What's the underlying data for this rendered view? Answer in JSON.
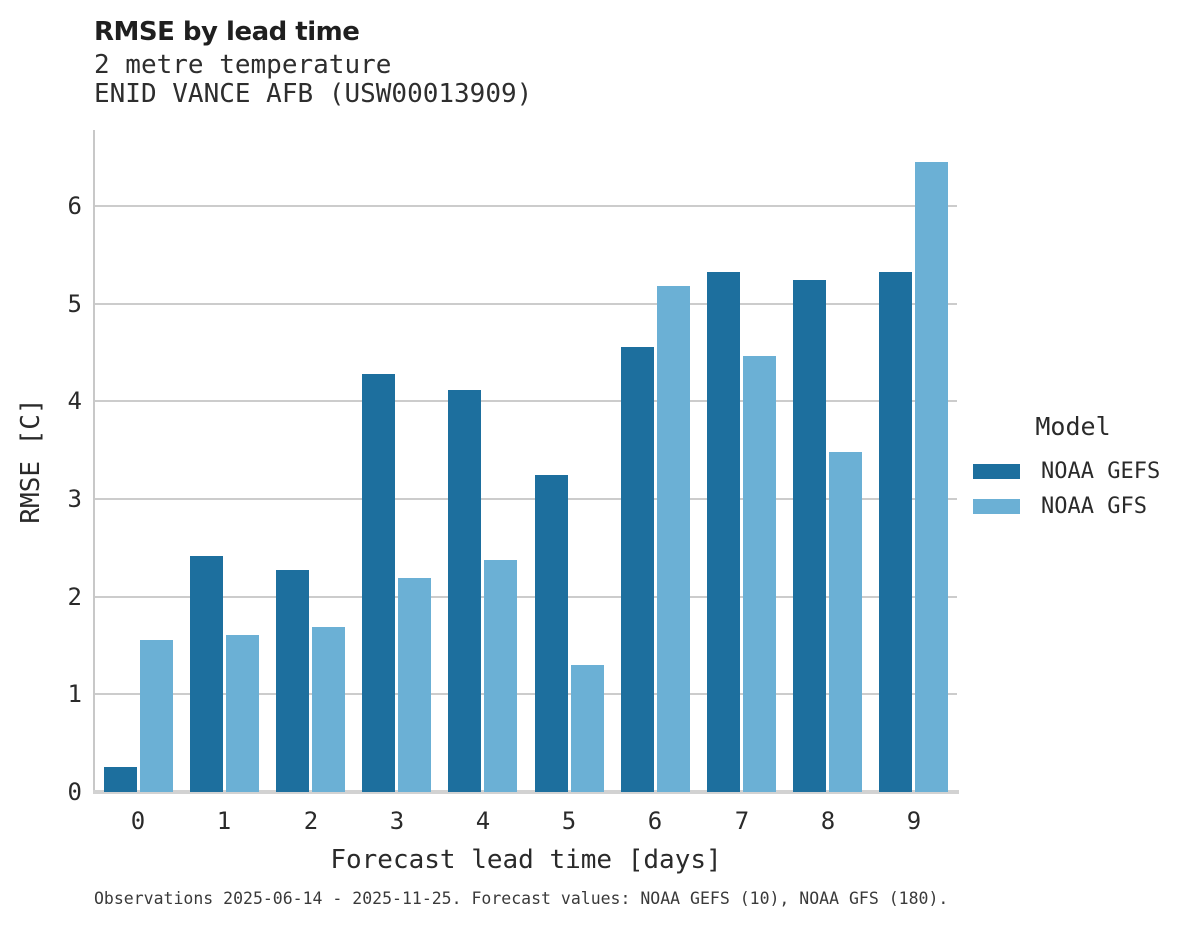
{
  "header": {
    "title": "RMSE by lead time",
    "subtitle": "2 metre temperature",
    "station": "ENID VANCE AFB (USW00013909)"
  },
  "legend": {
    "title": "Model",
    "items": [
      {
        "label": "NOAA GEFS",
        "color": "#1d6f9e"
      },
      {
        "label": "NOAA GFS",
        "color": "#6bb0d5"
      }
    ]
  },
  "footer": {
    "caption": "Observations 2025-06-14 - 2025-11-25. Forecast values: NOAA GEFS (10), NOAA GFS (180)."
  },
  "colors": {
    "gefs": "#1d6f9e",
    "gfs": "#6bb0d5",
    "gridline": "#cccccc",
    "spine": "#c8c8c8"
  },
  "chart_data": {
    "type": "bar",
    "title": "RMSE by lead time",
    "subtitle": "2 metre temperature ENID VANCE AFB (USW00013909)",
    "categories": [
      "0",
      "1",
      "2",
      "3",
      "4",
      "5",
      "6",
      "7",
      "8",
      "9"
    ],
    "series": [
      {
        "name": "NOAA GEFS",
        "color": "#1d6f9e",
        "values": [
          0.26,
          2.42,
          2.27,
          4.28,
          4.12,
          3.25,
          4.56,
          5.33,
          5.24,
          5.33
        ]
      },
      {
        "name": "NOAA GFS",
        "color": "#6bb0d5",
        "values": [
          1.56,
          1.61,
          1.69,
          2.19,
          2.38,
          1.3,
          5.18,
          4.47,
          3.48,
          6.45
        ]
      }
    ],
    "xlabel": "Forecast lead time [days]",
    "ylabel": "RMSE [C]",
    "ylim": [
      0,
      6.78
    ],
    "yticks": [
      0,
      1,
      2,
      3,
      4,
      5,
      6
    ],
    "grid": true,
    "legend_title": "Model",
    "legend_position": "right"
  }
}
